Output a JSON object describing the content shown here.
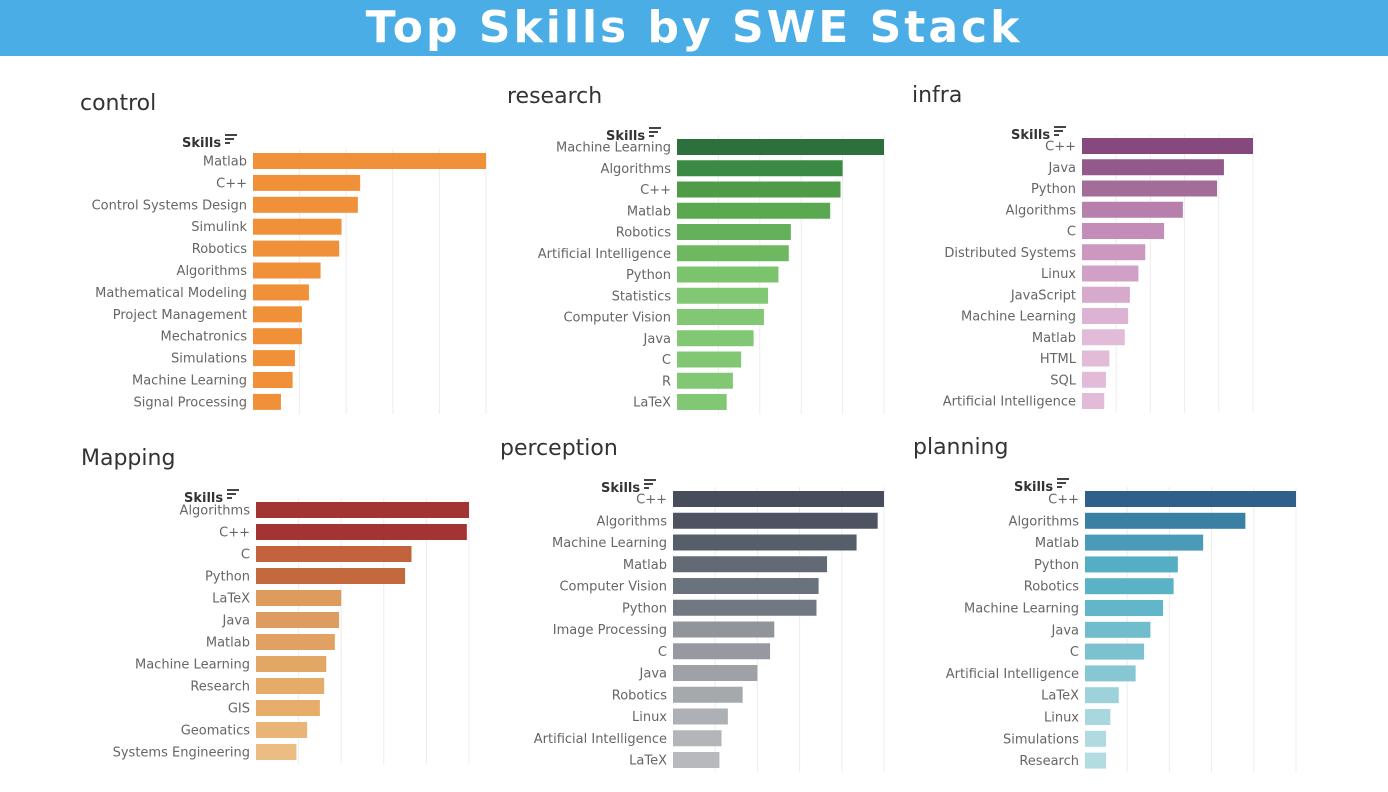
{
  "banner": {
    "title": "Top Skills by SWE Stack"
  },
  "axis_label": "Skills",
  "chart_data": [
    {
      "type": "bar",
      "title": "control",
      "ylabel": "Skills",
      "categories": [
        "Matlab",
        "C++",
        "Control Systems Design",
        "Simulink",
        "Robotics",
        "Algorithms",
        "Mathematical Modeling",
        "Project Management",
        "Mechatronics",
        "Simulations",
        "Machine Learning",
        "Signal Processing"
      ],
      "values": [
        100,
        46,
        45,
        38,
        37,
        29,
        24,
        21,
        21,
        18,
        17,
        12
      ],
      "colors": [
        "#f0913a"
      ],
      "xlim": [
        0,
        100
      ]
    },
    {
      "type": "bar",
      "title": "research",
      "ylabel": "Skills",
      "categories": [
        "Machine Learning",
        "Algorithms",
        "C++",
        "Matlab",
        "Robotics",
        "Artificial Intelligence",
        "Python",
        "Statistics",
        "Computer Vision",
        "Java",
        "C",
        "R",
        "LaTeX"
      ],
      "values": [
        100,
        80,
        79,
        74,
        55,
        54,
        49,
        44,
        42,
        37,
        31,
        27,
        24
      ],
      "colors": [
        "#2e6f3e",
        "#3a8a44",
        "#4e9c48",
        "#5aa850",
        "#65b05a",
        "#6fb862",
        "#7cc36e",
        "#82c874"
      ],
      "xlim": [
        0,
        100
      ]
    },
    {
      "type": "bar",
      "title": "infra",
      "ylabel": "Skills",
      "categories": [
        "C++",
        "Java",
        "Python",
        "Algorithms",
        "C",
        "Distributed Systems",
        "Linux",
        "JavaScript",
        "Machine Learning",
        "Matlab",
        "HTML",
        "SQL",
        "Artificial Intelligence"
      ],
      "values": [
        100,
        83,
        79,
        59,
        48,
        37,
        33,
        28,
        27,
        25,
        16,
        14,
        13
      ],
      "colors": [
        "#86497e",
        "#93598a",
        "#a46d99",
        "#b67fac",
        "#c48cb8",
        "#cc98c0",
        "#d1a0c6",
        "#d7a9cc",
        "#ddb3d3",
        "#e1bbd8"
      ],
      "xlim": [
        0,
        100
      ]
    },
    {
      "type": "bar",
      "title": "Mapping",
      "ylabel": "Skills",
      "categories": [
        "Algorithms",
        "C++",
        "C",
        "Python",
        "LaTeX",
        "Java",
        "Matlab",
        "Machine Learning",
        "Research",
        "GIS",
        "Geomatics",
        "Systems Engineering"
      ],
      "values": [
        100,
        99,
        73,
        70,
        40,
        39,
        37,
        33,
        32,
        30,
        24,
        19
      ],
      "colors": [
        "#a23433",
        "#a23433",
        "#c2633d",
        "#c4693e",
        "#dd9b5e",
        "#de9d60",
        "#e0a163",
        "#e3a765",
        "#e5ab68",
        "#e6ae6a",
        "#e9b577",
        "#ebbd82"
      ],
      "xlim": [
        0,
        100
      ]
    },
    {
      "type": "bar",
      "title": "perception",
      "ylabel": "Skills",
      "categories": [
        "C++",
        "Algorithms",
        "Machine Learning",
        "Matlab",
        "Computer Vision",
        "Python",
        "Image Processing",
        "C",
        "Java",
        "Robotics",
        "Linux",
        "Artificial Intelligence",
        "LaTeX"
      ],
      "values": [
        100,
        97,
        87,
        73,
        69,
        68,
        48,
        46,
        40,
        33,
        26,
        23,
        22
      ],
      "colors": [
        "#474d5a",
        "#4d5360",
        "#565e6a",
        "#626a75",
        "#6a727d",
        "#717882",
        "#8f959b",
        "#969aa0",
        "#9ea2a7",
        "#a5a8ad",
        "#adb0b4",
        "#b3b5b8",
        "#b7b9bc"
      ],
      "xlim": [
        0,
        100
      ]
    },
    {
      "type": "bar",
      "title": "planning",
      "ylabel": "Skills",
      "categories": [
        "C++",
        "Algorithms",
        "Matlab",
        "Python",
        "Robotics",
        "Machine Learning",
        "Java",
        "C",
        "Artificial Intelligence",
        "LaTeX",
        "Linux",
        "Simulations",
        "Research"
      ],
      "values": [
        100,
        76,
        56,
        44,
        42,
        37,
        31,
        28,
        24,
        16,
        12,
        10,
        10
      ],
      "colors": [
        "#2f5f8a",
        "#3a7fa4",
        "#4a9bb8",
        "#55aec4",
        "#5ab2c6",
        "#62b6c9",
        "#72bdcd",
        "#7ac2d0",
        "#86c7d3",
        "#9ed2da",
        "#a8d7de",
        "#afdae0",
        "#b3dce2"
      ],
      "xlim": [
        0,
        100
      ]
    }
  ]
}
